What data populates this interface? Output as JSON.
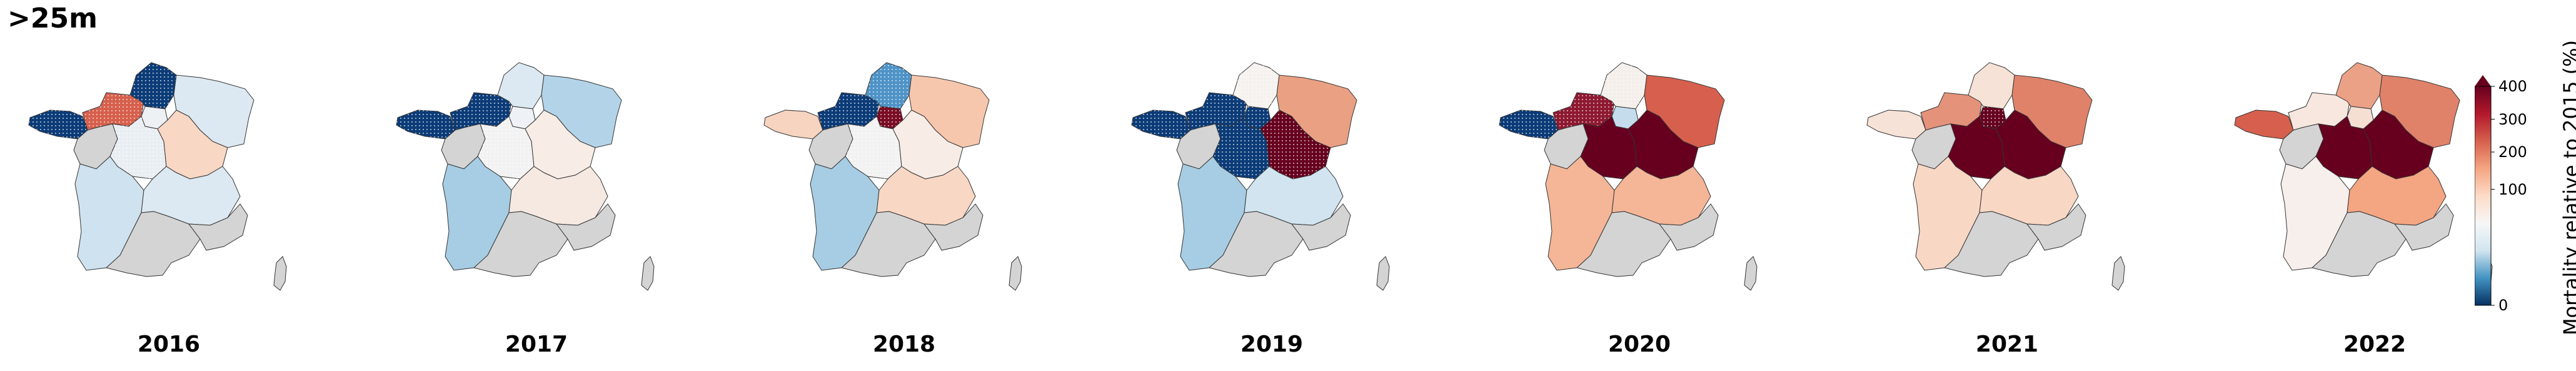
{
  "title": ">25m",
  "colorbar": {
    "label": "Mortality relative to 2015 (%)",
    "ticks": [
      "0",
      "100",
      "200",
      "300",
      "400"
    ],
    "colors": [
      "#053061",
      "#4393c3",
      "#d1e5f0",
      "#f7f7f7",
      "#fddbc7",
      "#f4a582",
      "#d6604d",
      "#b2182b",
      "#67001f"
    ],
    "extend": "max"
  },
  "no_data_color": "#d4d4d4",
  "stipple_note": "dotted hatch marks regions",
  "years": [
    {
      "label": "2016",
      "regions": {
        "bretagne": "#0c3c78",
        "normandie": "#d6604d",
        "hdf": "#0c3c78",
        "grandest": "#dce9f2",
        "idf": "#eef1f4",
        "pdl": "#d4d4d4",
        "centre": "#e9eef3",
        "bfc": "#f8d7c4",
        "naq": "#cfe2ef",
        "ara": "#dce9f2",
        "occ": "#d4d4d4",
        "paca": "#d4d4d4",
        "corse": "#d4d4d4"
      },
      "dots": [
        "bretagne",
        "normandie",
        "hdf",
        "centre"
      ]
    },
    {
      "label": "2017",
      "regions": {
        "bretagne": "#0c3c78",
        "normandie": "#0c3c78",
        "hdf": "#dce9f2",
        "grandest": "#b3d4e8",
        "idf": "#eef2f6",
        "pdl": "#d4d4d4",
        "centre": "#f2f2f2",
        "bfc": "#f8ece6",
        "naq": "#a6cde3",
        "ara": "#f5e9e2",
        "occ": "#d4d4d4",
        "paca": "#d4d4d4",
        "corse": "#d4d4d4"
      },
      "dots": [
        "bretagne",
        "normandie",
        "centre"
      ]
    },
    {
      "label": "2018",
      "regions": {
        "bretagne": "#f6d4c0",
        "normandie": "#0c3c78",
        "hdf": "#4f93c7",
        "grandest": "#f7c7ad",
        "idf": "#7a0d25",
        "pdl": "#d4d4d4",
        "centre": "#f2f2f2",
        "bfc": "#f8ece6",
        "naq": "#a6cde3",
        "ara": "#f8d7c4",
        "occ": "#d4d4d4",
        "paca": "#d4d4d4",
        "corse": "#d4d4d4"
      },
      "dots": [
        "normandie",
        "hdf",
        "idf",
        "centre"
      ]
    },
    {
      "label": "2019",
      "regions": {
        "bretagne": "#0c3c78",
        "normandie": "#0c3c78",
        "hdf": "#f5f2ef",
        "grandest": "#eaa083",
        "idf": "#0c3c78",
        "pdl": "#d4d4d4",
        "centre": "#0c3c78",
        "bfc": "#67001f",
        "naq": "#a6cde3",
        "ara": "#d1e4f0",
        "occ": "#d4d4d4",
        "paca": "#d4d4d4",
        "corse": "#d4d4d4"
      },
      "dots": [
        "bretagne",
        "normandie",
        "hdf",
        "idf",
        "centre",
        "bfc"
      ]
    },
    {
      "label": "2020",
      "regions": {
        "bretagne": "#0c3c78",
        "normandie": "#8e1a31",
        "hdf": "#f4efeb",
        "grandest": "#d6604d",
        "idf": "#c5dced",
        "pdl": "#d4d4d4",
        "centre": "#67001f",
        "bfc": "#67001f",
        "naq": "#f4b697",
        "ara": "#f4b697",
        "occ": "#d4d4d4",
        "paca": "#d4d4d4",
        "corse": "#d4d4d4"
      },
      "dots": [
        "bretagne",
        "normandie",
        "hdf"
      ]
    },
    {
      "label": "2021",
      "regions": {
        "bretagne": "#f7e2d7",
        "normandie": "#e4937a",
        "hdf": "#f7e2d7",
        "grandest": "#e0826a",
        "idf": "#67001f",
        "pdl": "#d4d4d4",
        "centre": "#67001f",
        "bfc": "#67001f",
        "naq": "#f8d7c4",
        "ara": "#f8d7c4",
        "occ": "#d4d4d4",
        "paca": "#d4d4d4",
        "corse": "#d4d4d4"
      },
      "dots": [
        "idf"
      ]
    },
    {
      "label": "2022",
      "regions": {
        "bretagne": "#d6604d",
        "normandie": "#f7e7df",
        "hdf": "#eba186",
        "grandest": "#e0826a",
        "idf": "#f5dfd3",
        "pdl": "#d4d4d4",
        "centre": "#67001f",
        "bfc": "#67001f",
        "naq": "#f7efec",
        "ara": "#f4a582",
        "occ": "#d4d4d4",
        "paca": "#d4d4d4",
        "corse": "#d4d4d4"
      },
      "dots": []
    }
  ]
}
